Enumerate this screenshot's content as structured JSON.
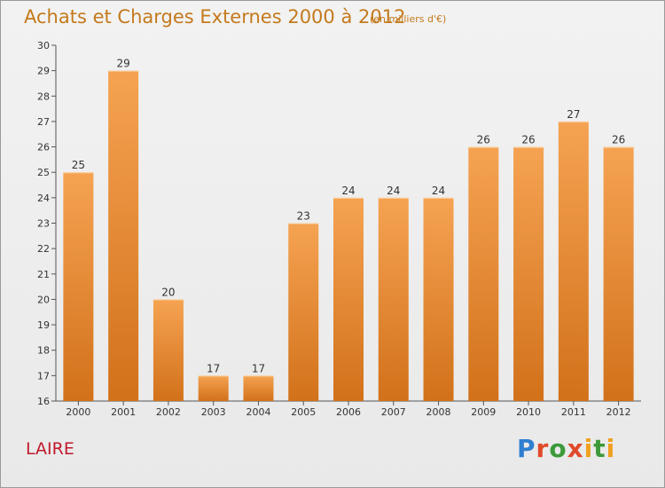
{
  "header": {
    "title": "Achats et Charges Externes 2000 à 2012",
    "subtitle": "(en milliers d'€)"
  },
  "footer": {
    "commune": "LAIRE",
    "brand": "Proxiti"
  },
  "colors": {
    "bar_top": "#f5a352",
    "bar_bottom": "#d2711a",
    "title": "#c47a1c",
    "commune": "#c0192c"
  },
  "chart_data": {
    "type": "bar",
    "categories": [
      "2000",
      "2001",
      "2002",
      "2003",
      "2004",
      "2005",
      "2006",
      "2007",
      "2008",
      "2009",
      "2010",
      "2011",
      "2012"
    ],
    "values": [
      25,
      29,
      20,
      17,
      17,
      23,
      24,
      24,
      24,
      26,
      26,
      27,
      26
    ],
    "title": "Achats et Charges Externes 2000 à 2012",
    "xlabel": "",
    "ylabel": "",
    "ylim": [
      16,
      30
    ],
    "yticks": [
      16,
      17,
      18,
      19,
      20,
      21,
      22,
      23,
      24,
      25,
      26,
      27,
      28,
      29,
      30
    ],
    "grid": false,
    "legend": "none"
  }
}
